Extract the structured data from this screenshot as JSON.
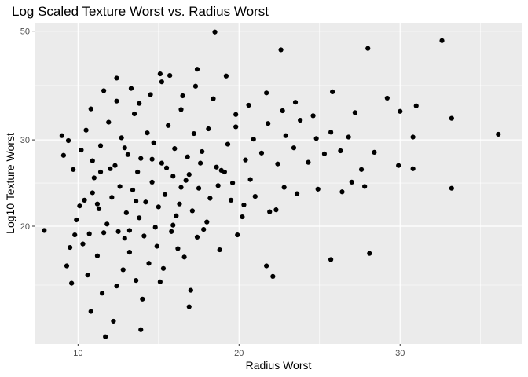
{
  "chart_data": {
    "type": "scatter",
    "title": "Log Scaled Texture Worst vs. Radius Worst",
    "xlabel": "Radius Worst",
    "ylabel": "Log10 Texture Worst",
    "y_scale": "log10",
    "xlim": [
      7.3,
      37.6
    ],
    "ylim": [
      11.5,
      52
    ],
    "x_ticks": [
      10,
      20,
      30
    ],
    "y_ticks": [
      20,
      30,
      50
    ],
    "grid": true,
    "legend": "none",
    "colors": {
      "panel": "#ebebeb",
      "grid_major": "#ffffff",
      "point": "#000000"
    },
    "series": [
      {
        "points": [
          [
            7.9,
            19.6
          ],
          [
            9.3,
            16.6
          ],
          [
            9.6,
            15.3
          ],
          [
            9.5,
            18.1
          ],
          [
            9.8,
            19.2
          ],
          [
            9.9,
            20.6
          ],
          [
            10.1,
            22.0
          ],
          [
            10.3,
            18.4
          ],
          [
            10.6,
            15.9
          ],
          [
            10.8,
            13.4
          ],
          [
            11.2,
            17.4
          ],
          [
            11.5,
            14.6
          ],
          [
            11.7,
            11.9
          ],
          [
            12.2,
            12.8
          ],
          [
            12.4,
            15.1
          ],
          [
            12.8,
            16.3
          ],
          [
            13.2,
            17.7
          ],
          [
            13.6,
            15.5
          ],
          [
            14.0,
            14.2
          ],
          [
            14.4,
            16.8
          ],
          [
            14.9,
            18.2
          ],
          [
            15.3,
            16.4
          ],
          [
            15.8,
            19.5
          ],
          [
            16.2,
            18.0
          ],
          [
            16.6,
            17.3
          ],
          [
            17.0,
            14.8
          ],
          [
            17.4,
            19.0
          ],
          [
            18.0,
            20.4
          ],
          [
            18.8,
            17.9
          ],
          [
            19.9,
            19.2
          ],
          [
            20.2,
            20.9
          ],
          [
            13.9,
            12.3
          ],
          [
            15.1,
            15.4
          ],
          [
            16.9,
            13.7
          ],
          [
            10.4,
            22.6
          ],
          [
            10.9,
            23.4
          ],
          [
            11.3,
            21.7
          ],
          [
            11.8,
            20.2
          ],
          [
            12.1,
            22.9
          ],
          [
            12.6,
            24.1
          ],
          [
            13.0,
            21.3
          ],
          [
            13.4,
            23.7
          ],
          [
            13.8,
            20.8
          ],
          [
            14.2,
            22.4
          ],
          [
            14.6,
            24.6
          ],
          [
            15.0,
            21.9
          ],
          [
            15.4,
            23.2
          ],
          [
            15.9,
            25.3
          ],
          [
            16.3,
            22.2
          ],
          [
            16.7,
            24.8
          ],
          [
            17.1,
            21.5
          ],
          [
            17.5,
            23.9
          ],
          [
            18.2,
            22.8
          ],
          [
            18.7,
            24.2
          ],
          [
            19.1,
            25.8
          ],
          [
            19.6,
            24.5
          ],
          [
            20.3,
            22.1
          ],
          [
            21.0,
            23.0
          ],
          [
            21.9,
            21.4
          ],
          [
            22.8,
            24.0
          ],
          [
            23.6,
            23.3
          ],
          [
            24.9,
            23.8
          ],
          [
            26.4,
            23.5
          ],
          [
            27.0,
            24.6
          ],
          [
            27.8,
            24.1
          ],
          [
            9.1,
            27.9
          ],
          [
            9.4,
            29.9
          ],
          [
            9.7,
            26.1
          ],
          [
            10.2,
            28.6
          ],
          [
            10.5,
            31.4
          ],
          [
            10.9,
            27.2
          ],
          [
            11.4,
            29.2
          ],
          [
            11.9,
            32.6
          ],
          [
            12.3,
            26.6
          ],
          [
            12.7,
            30.3
          ],
          [
            13.1,
            28.0
          ],
          [
            13.5,
            33.9
          ],
          [
            13.9,
            27.5
          ],
          [
            14.3,
            31.0
          ],
          [
            14.7,
            29.6
          ],
          [
            15.2,
            26.9
          ],
          [
            15.6,
            32.1
          ],
          [
            16.0,
            28.8
          ],
          [
            16.4,
            34.6
          ],
          [
            16.8,
            27.7
          ],
          [
            17.2,
            30.9
          ],
          [
            17.7,
            28.4
          ],
          [
            18.1,
            31.6
          ],
          [
            18.6,
            26.4
          ],
          [
            19.3,
            29.4
          ],
          [
            19.8,
            31.9
          ],
          [
            20.4,
            27.3
          ],
          [
            20.9,
            30.1
          ],
          [
            21.4,
            28.2
          ],
          [
            21.8,
            32.4
          ],
          [
            22.4,
            26.8
          ],
          [
            22.9,
            30.6
          ],
          [
            23.4,
            28.9
          ],
          [
            23.8,
            32.9
          ],
          [
            24.3,
            27.0
          ],
          [
            24.8,
            30.2
          ],
          [
            25.3,
            28.1
          ],
          [
            25.7,
            31.1
          ],
          [
            26.3,
            28.5
          ],
          [
            26.8,
            30.4
          ],
          [
            27.6,
            26.1
          ],
          [
            28.4,
            28.3
          ],
          [
            29.9,
            26.6
          ],
          [
            30.8,
            26.2
          ],
          [
            30.8,
            30.4
          ],
          [
            33.2,
            23.9
          ],
          [
            36.1,
            30.8
          ],
          [
            9.0,
            30.6
          ],
          [
            10.8,
            34.7
          ],
          [
            11.6,
            37.8
          ],
          [
            12.4,
            36.0
          ],
          [
            13.3,
            38.2
          ],
          [
            13.8,
            35.6
          ],
          [
            14.5,
            37.1
          ],
          [
            15.2,
            39.4
          ],
          [
            15.7,
            40.6
          ],
          [
            16.5,
            36.9
          ],
          [
            17.3,
            38.6
          ],
          [
            18.4,
            36.4
          ],
          [
            19.8,
            33.8
          ],
          [
            20.6,
            35.3
          ],
          [
            21.7,
            37.4
          ],
          [
            22.7,
            34.4
          ],
          [
            23.5,
            35.8
          ],
          [
            24.6,
            33.6
          ],
          [
            25.8,
            37.6
          ],
          [
            27.2,
            34.1
          ],
          [
            29.2,
            36.5
          ],
          [
            30.0,
            34.3
          ],
          [
            31.0,
            35.2
          ],
          [
            33.2,
            33.2
          ],
          [
            12.4,
            40.1
          ],
          [
            15.1,
            40.9
          ],
          [
            17.4,
            41.8
          ],
          [
            19.2,
            40.5
          ],
          [
            22.6,
            45.8
          ],
          [
            28.0,
            46.1
          ],
          [
            32.6,
            47.8
          ],
          [
            18.5,
            49.8
          ],
          [
            11.0,
            25.1
          ],
          [
            11.6,
            19.4
          ],
          [
            12.9,
            18.9
          ],
          [
            13.7,
            25.8
          ],
          [
            14.8,
            19.9
          ],
          [
            15.5,
            26.3
          ],
          [
            16.1,
            21.0
          ],
          [
            16.9,
            25.5
          ],
          [
            17.8,
            19.7
          ],
          [
            18.9,
            26.0
          ],
          [
            21.7,
            16.6
          ],
          [
            22.3,
            21.6
          ],
          [
            22.1,
            15.8
          ],
          [
            25.7,
            17.1
          ],
          [
            28.1,
            17.6
          ],
          [
            13.2,
            19.6
          ],
          [
            12.0,
            26.2
          ],
          [
            14.1,
            19.1
          ],
          [
            10.7,
            19.3
          ],
          [
            15.9,
            20.1
          ],
          [
            11.2,
            22.2
          ],
          [
            12.5,
            19.5
          ],
          [
            13.6,
            22.5
          ],
          [
            16.4,
            24.0
          ],
          [
            14.6,
            27.4
          ],
          [
            12.9,
            28.9
          ],
          [
            11.4,
            25.8
          ],
          [
            17.6,
            26.9
          ],
          [
            19.5,
            22.6
          ],
          [
            20.7,
            24.9
          ]
        ]
      }
    ]
  }
}
